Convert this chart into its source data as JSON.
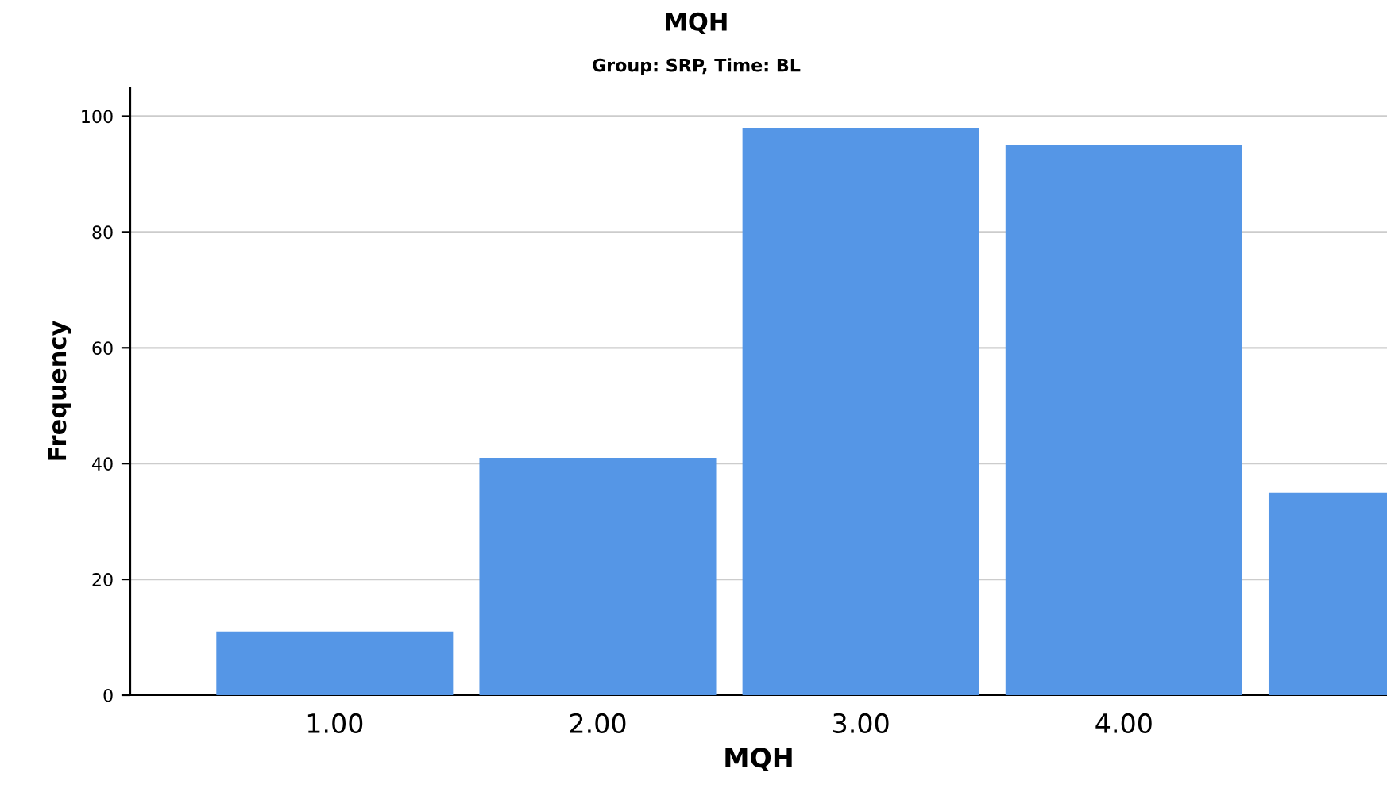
{
  "chart_data": {
    "type": "bar",
    "title": "MQH",
    "subtitle": "Group: SRP, Time: BL",
    "xlabel": "MQH",
    "ylabel": "Frequency",
    "categories": [
      "1.00",
      "2.00",
      "3.00",
      "4.00",
      null
    ],
    "values": [
      11,
      41,
      98,
      95,
      35
    ],
    "color": "#5596e6",
    "ylim": [
      0,
      105
    ],
    "yticks": [
      0,
      20,
      40,
      60,
      80,
      100
    ],
    "grid": "y",
    "legend": false
  }
}
